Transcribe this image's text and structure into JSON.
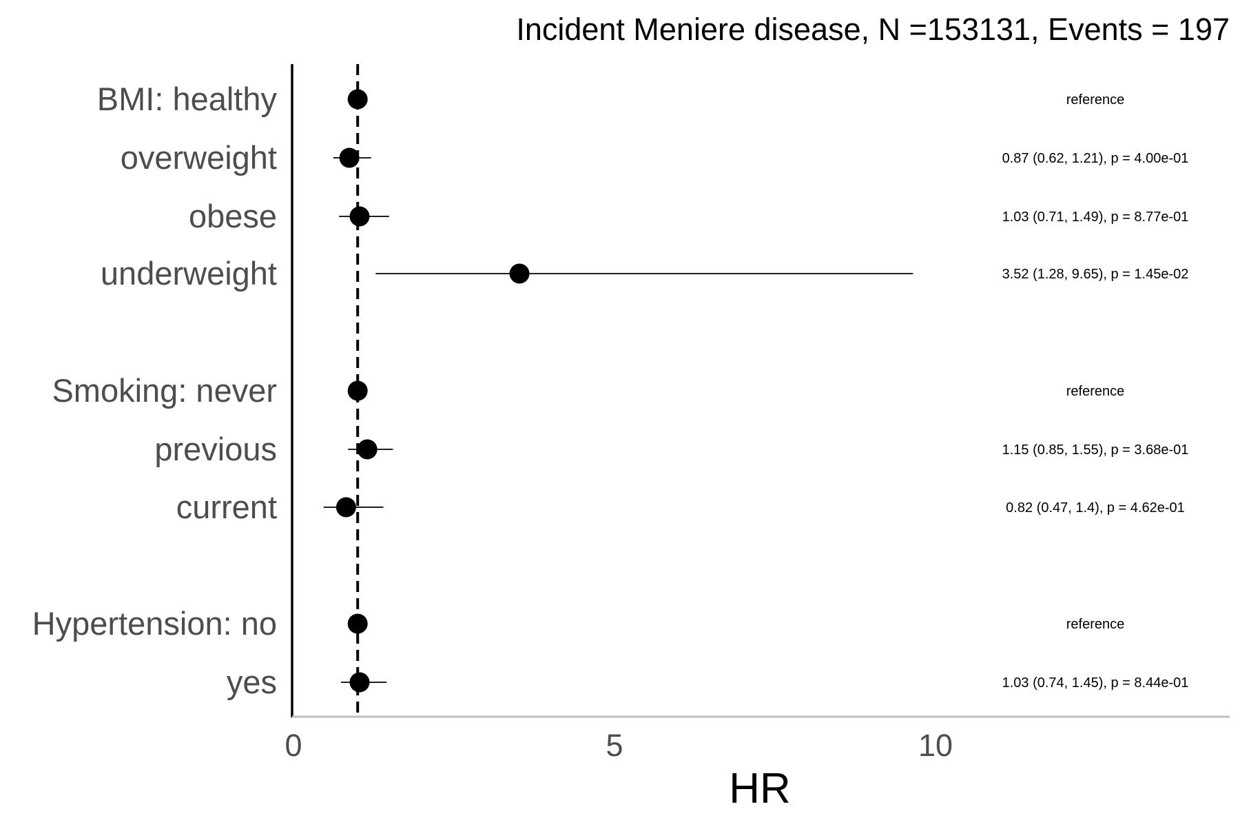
{
  "chart_data": {
    "type": "forest",
    "title": "Incident Meniere disease, N =153131, Events = 197",
    "xlabel": "HR",
    "xlim": [
      0,
      14.3
    ],
    "xticks": [
      0,
      5,
      10
    ],
    "reference_line": 1,
    "rows": [
      {
        "label": "BMI: healthy",
        "hr": 1,
        "lower": null,
        "upper": null,
        "annotation": "reference"
      },
      {
        "label": "overweight",
        "hr": 0.87,
        "lower": 0.62,
        "upper": 1.21,
        "annotation": "0.87 (0.62, 1.21), p = 4.00e-01"
      },
      {
        "label": "obese",
        "hr": 1.03,
        "lower": 0.71,
        "upper": 1.49,
        "annotation": "1.03 (0.71, 1.49), p = 8.77e-01"
      },
      {
        "label": "underweight",
        "hr": 3.52,
        "lower": 1.28,
        "upper": 9.65,
        "annotation": "3.52 (1.28, 9.65), p = 1.45e-02"
      },
      {
        "label": "Smoking: never",
        "hr": 1,
        "lower": null,
        "upper": null,
        "annotation": "reference"
      },
      {
        "label": "previous",
        "hr": 1.15,
        "lower": 0.85,
        "upper": 1.55,
        "annotation": "1.15 (0.85, 1.55), p = 3.68e-01"
      },
      {
        "label": "current",
        "hr": 0.82,
        "lower": 0.47,
        "upper": 1.4,
        "annotation": "0.82 (0.47, 1.4), p = 4.62e-01"
      },
      {
        "label": "Hypertension: no",
        "hr": 1,
        "lower": null,
        "upper": null,
        "annotation": "reference"
      },
      {
        "label": "yes",
        "hr": 1.03,
        "lower": 0.74,
        "upper": 1.45,
        "annotation": "1.03 (0.74, 1.45), p = 8.44e-01"
      }
    ]
  }
}
